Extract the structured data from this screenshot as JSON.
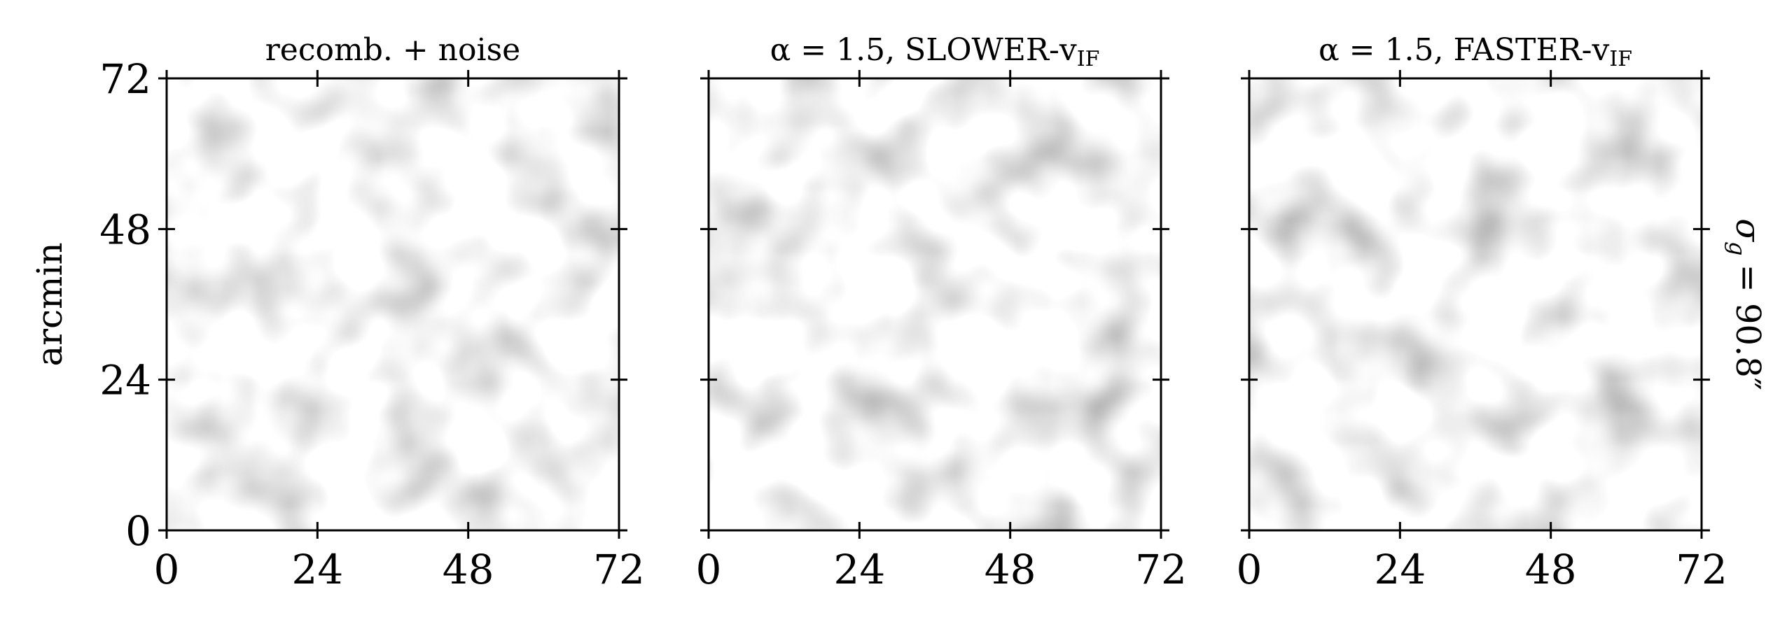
{
  "chart_data": [
    {
      "type": "image",
      "title": "recomb. + noise",
      "ylabel": "arcmin",
      "xlim": [
        0,
        72
      ],
      "ylim": [
        0,
        72
      ],
      "xticks": [
        0,
        24,
        48,
        72
      ],
      "yticks": [
        0,
        24,
        48,
        72
      ],
      "ytick_labels": true
    },
    {
      "type": "image",
      "title": "α = 1.5, SLOWER-v",
      "title_subscript": "IF",
      "xlim": [
        0,
        72
      ],
      "ylim": [
        0,
        72
      ],
      "xticks": [
        0,
        24,
        48,
        72
      ],
      "yticks": [
        0,
        24,
        48,
        72
      ],
      "ytick_labels": false
    },
    {
      "type": "image",
      "title": "α = 1.5, FASTER-v",
      "title_subscript": "IF",
      "xlim": [
        0,
        72
      ],
      "ylim": [
        0,
        72
      ],
      "xticks": [
        0,
        24,
        48,
        72
      ],
      "yticks": [
        0,
        24,
        48,
        72
      ],
      "ytick_labels": false,
      "annotation": {
        "symbol": "σ",
        "subscript": "g",
        "text": "= 90.8″"
      }
    }
  ]
}
